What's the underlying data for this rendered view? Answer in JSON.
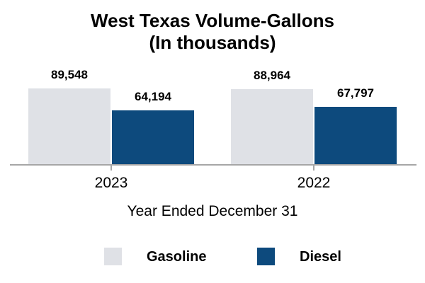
{
  "title": {
    "line1": "West Texas Volume-Gallons",
    "line2": "(In thousands)"
  },
  "xlabel": "Year Ended December 31",
  "colors": {
    "gasoline": "#dfe1e6",
    "diesel": "#0d4a7d",
    "axis": "#a6a6a6"
  },
  "legend": {
    "items": [
      {
        "label": "Gasoline",
        "color": "#dfe1e6"
      },
      {
        "label": "Diesel",
        "color": "#0d4a7d"
      }
    ]
  },
  "chart_data": {
    "type": "bar",
    "title": "West Texas Volume-Gallons (In thousands)",
    "xlabel": "Year Ended December 31",
    "ylabel": "",
    "categories": [
      "2023",
      "2022"
    ],
    "series": [
      {
        "name": "Gasoline",
        "color": "#dfe1e6",
        "values": [
          89548,
          88964
        ],
        "labels": [
          "89,548",
          "88,964"
        ]
      },
      {
        "name": "Diesel",
        "color": "#0d4a7d",
        "values": [
          64194,
          67797
        ],
        "labels": [
          "64,194",
          "67,797"
        ]
      }
    ],
    "ylim": [
      0,
      100000
    ],
    "grid": false,
    "y_axis_visible": false,
    "value_labels": true,
    "legend_position": "bottom"
  }
}
